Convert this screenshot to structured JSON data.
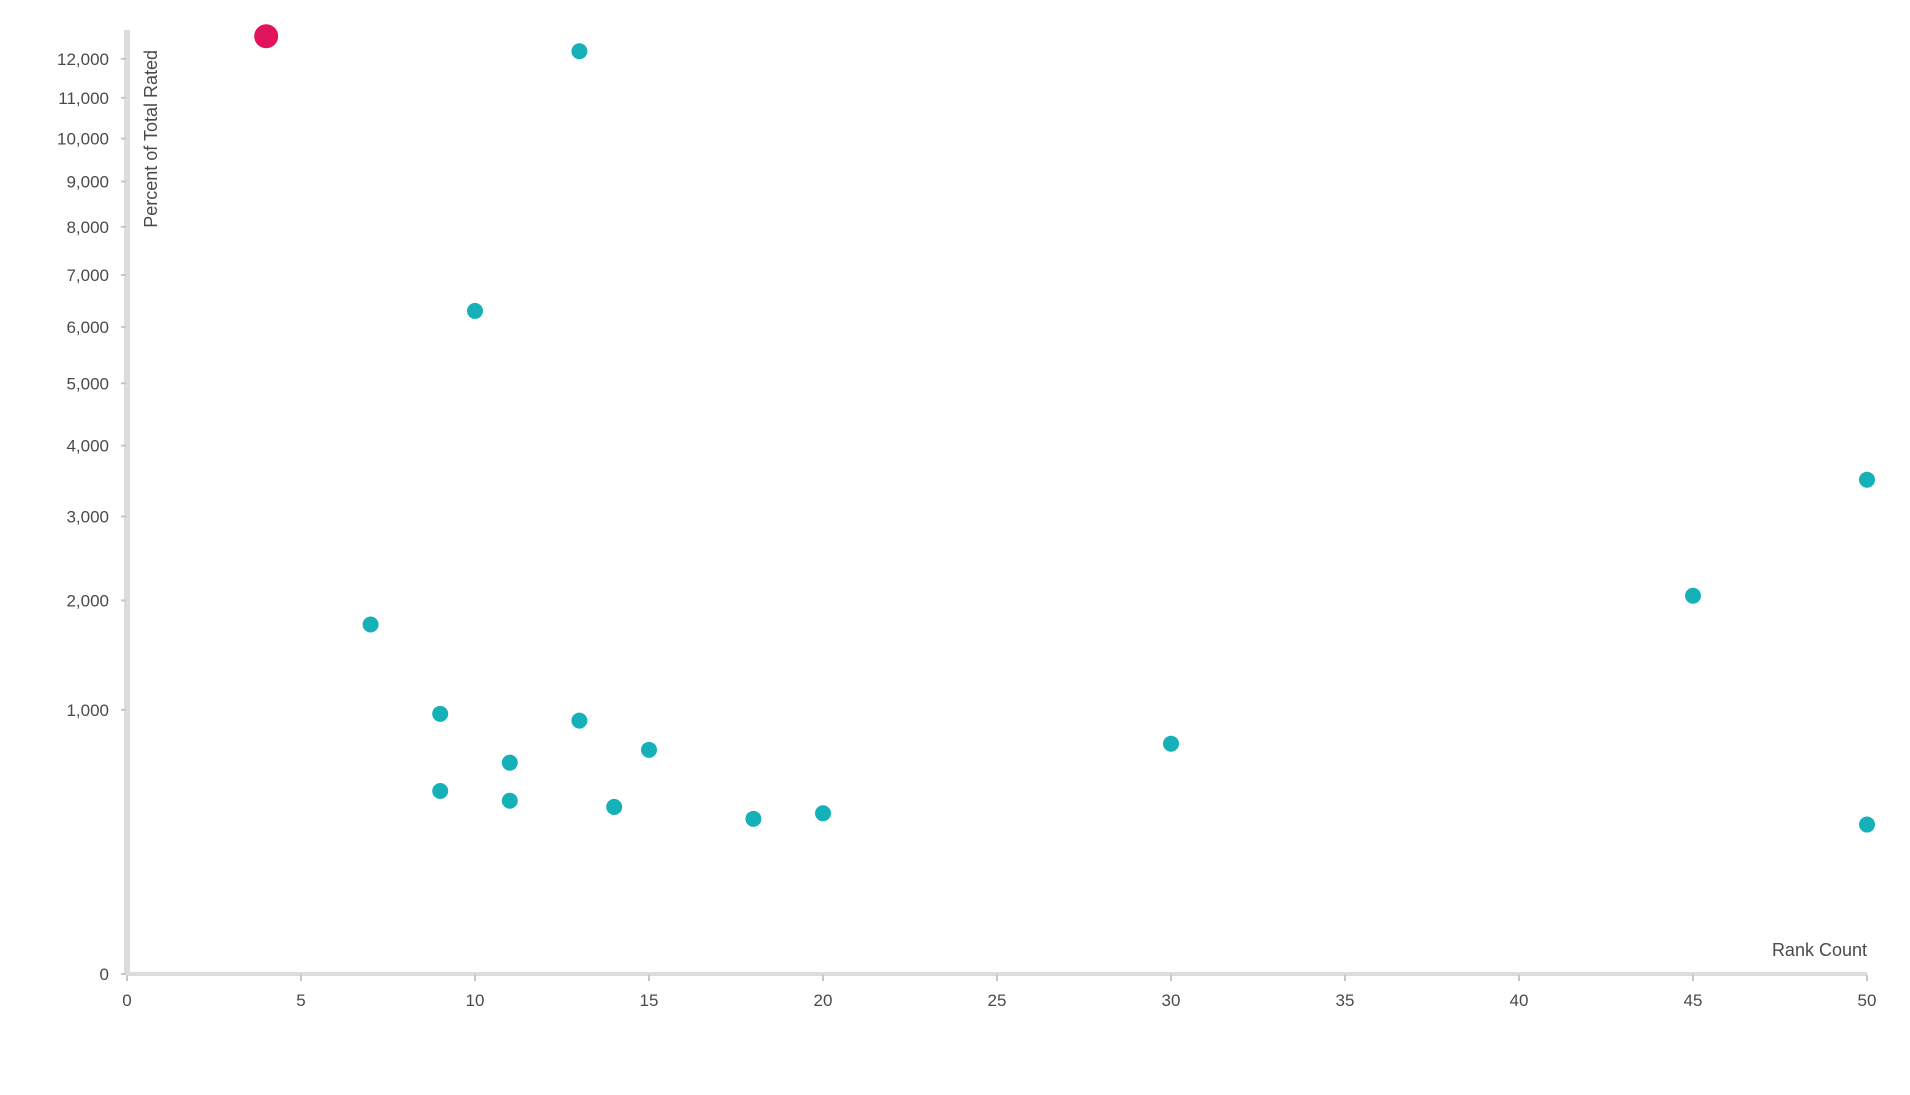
{
  "colors": {
    "point": "#16b1b8",
    "highlight": "#e0145c",
    "axis": "#dcdcdc",
    "tick": "#c6c6c6",
    "text": "#4a4a4a"
  },
  "chart_data": {
    "type": "scatter",
    "xlabel": "Rank Count",
    "ylabel": "Percent of Total Rated",
    "x_scale": "linear",
    "y_scale": "sqrt",
    "xlim": [
      0,
      50
    ],
    "ylim": [
      0,
      12500
    ],
    "grid": false,
    "x_ticks": [
      0,
      5,
      10,
      15,
      20,
      25,
      30,
      35,
      40,
      45,
      50
    ],
    "x_tick_labels": [
      "0",
      "5",
      "10",
      "15",
      "20",
      "25",
      "30",
      "35",
      "40",
      "45",
      "50"
    ],
    "y_ticks": [
      0,
      1000,
      2000,
      3000,
      4000,
      5000,
      6000,
      7000,
      8000,
      9000,
      10000,
      11000,
      12000
    ],
    "y_tick_labels": [
      "0",
      "1,000",
      "2,000",
      "3,000",
      "4,000",
      "5,000",
      "6,000",
      "7,000",
      "8,000",
      "9,000",
      "10,000",
      "11,000",
      "12,000"
    ],
    "series": [
      {
        "points": [
          {
            "x": 4,
            "y": 12600,
            "highlight": true
          },
          {
            "x": 13,
            "y": 12200
          },
          {
            "x": 10,
            "y": 6300
          },
          {
            "x": 50,
            "y": 3500
          },
          {
            "x": 45,
            "y": 2050
          },
          {
            "x": 7,
            "y": 1750
          },
          {
            "x": 9,
            "y": 970
          },
          {
            "x": 13,
            "y": 920
          },
          {
            "x": 30,
            "y": 760
          },
          {
            "x": 15,
            "y": 720
          },
          {
            "x": 11,
            "y": 640
          },
          {
            "x": 9,
            "y": 480
          },
          {
            "x": 11,
            "y": 430
          },
          {
            "x": 14,
            "y": 400
          },
          {
            "x": 20,
            "y": 370
          },
          {
            "x": 18,
            "y": 345
          },
          {
            "x": 50,
            "y": 320
          }
        ]
      }
    ]
  }
}
